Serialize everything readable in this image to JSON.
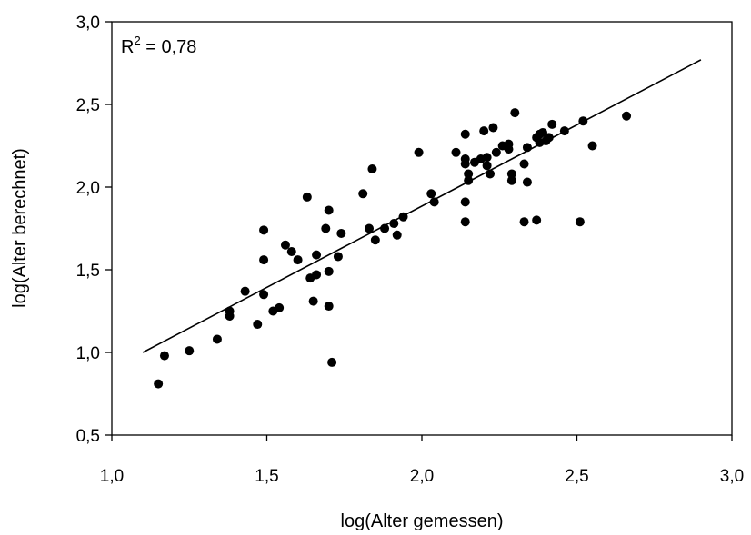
{
  "chart_data": {
    "type": "scatter",
    "title": "",
    "xlabel": "log(Alter gemessen)",
    "ylabel": "log(Alter berechnet)",
    "xlim": [
      1.0,
      3.0
    ],
    "ylim": [
      0.5,
      3.0
    ],
    "xticks": [
      1.0,
      1.5,
      2.0,
      2.5,
      3.0
    ],
    "yticks": [
      0.5,
      1.0,
      1.5,
      2.0,
      2.5,
      3.0
    ],
    "xtick_labels": [
      "1,0",
      "1,5",
      "2,0",
      "2,5",
      "3,0"
    ],
    "ytick_labels": [
      "0,5",
      "1,0",
      "1,5",
      "2,0",
      "2,5",
      "3,0"
    ],
    "grid": false,
    "annotation": {
      "text": "R",
      "sup": "2",
      "rest": " = 0,78"
    },
    "regression_line": {
      "x": [
        1.1,
        2.9
      ],
      "y": [
        1.0,
        2.77
      ]
    },
    "point_color": "#000000",
    "points": [
      [
        1.15,
        0.81
      ],
      [
        1.17,
        0.98
      ],
      [
        1.25,
        1.01
      ],
      [
        1.34,
        1.08
      ],
      [
        1.38,
        1.22
      ],
      [
        1.38,
        1.25
      ],
      [
        1.43,
        1.37
      ],
      [
        1.47,
        1.17
      ],
      [
        1.49,
        1.35
      ],
      [
        1.49,
        1.56
      ],
      [
        1.49,
        1.74
      ],
      [
        1.52,
        1.25
      ],
      [
        1.54,
        1.27
      ],
      [
        1.56,
        1.65
      ],
      [
        1.58,
        1.61
      ],
      [
        1.6,
        1.56
      ],
      [
        1.63,
        1.94
      ],
      [
        1.64,
        1.45
      ],
      [
        1.65,
        1.31
      ],
      [
        1.66,
        1.47
      ],
      [
        1.66,
        1.59
      ],
      [
        1.69,
        1.75
      ],
      [
        1.7,
        1.28
      ],
      [
        1.7,
        1.49
      ],
      [
        1.7,
        1.86
      ],
      [
        1.71,
        0.94
      ],
      [
        1.73,
        1.58
      ],
      [
        1.74,
        1.72
      ],
      [
        1.81,
        1.96
      ],
      [
        1.83,
        1.75
      ],
      [
        1.84,
        2.11
      ],
      [
        1.85,
        1.68
      ],
      [
        1.88,
        1.75
      ],
      [
        1.91,
        1.78
      ],
      [
        1.92,
        1.71
      ],
      [
        1.94,
        1.82
      ],
      [
        1.99,
        2.21
      ],
      [
        2.03,
        1.96
      ],
      [
        2.04,
        1.91
      ],
      [
        2.11,
        2.21
      ],
      [
        2.14,
        1.79
      ],
      [
        2.14,
        1.91
      ],
      [
        2.14,
        2.14
      ],
      [
        2.14,
        2.17
      ],
      [
        2.14,
        2.32
      ],
      [
        2.15,
        2.04
      ],
      [
        2.15,
        2.08
      ],
      [
        2.17,
        2.15
      ],
      [
        2.19,
        2.17
      ],
      [
        2.2,
        2.34
      ],
      [
        2.21,
        2.13
      ],
      [
        2.21,
        2.18
      ],
      [
        2.22,
        2.08
      ],
      [
        2.23,
        2.36
      ],
      [
        2.24,
        2.21
      ],
      [
        2.26,
        2.25
      ],
      [
        2.28,
        2.23
      ],
      [
        2.28,
        2.26
      ],
      [
        2.29,
        2.04
      ],
      [
        2.29,
        2.08
      ],
      [
        2.3,
        2.45
      ],
      [
        2.33,
        1.79
      ],
      [
        2.33,
        2.14
      ],
      [
        2.34,
        2.03
      ],
      [
        2.34,
        2.24
      ],
      [
        2.37,
        1.8
      ],
      [
        2.37,
        2.3
      ],
      [
        2.38,
        2.27
      ],
      [
        2.38,
        2.32
      ],
      [
        2.39,
        2.33
      ],
      [
        2.4,
        2.28
      ],
      [
        2.41,
        2.3
      ],
      [
        2.42,
        2.38
      ],
      [
        2.46,
        2.34
      ],
      [
        2.51,
        1.79
      ],
      [
        2.52,
        2.4
      ],
      [
        2.55,
        2.25
      ],
      [
        2.66,
        2.43
      ]
    ]
  }
}
